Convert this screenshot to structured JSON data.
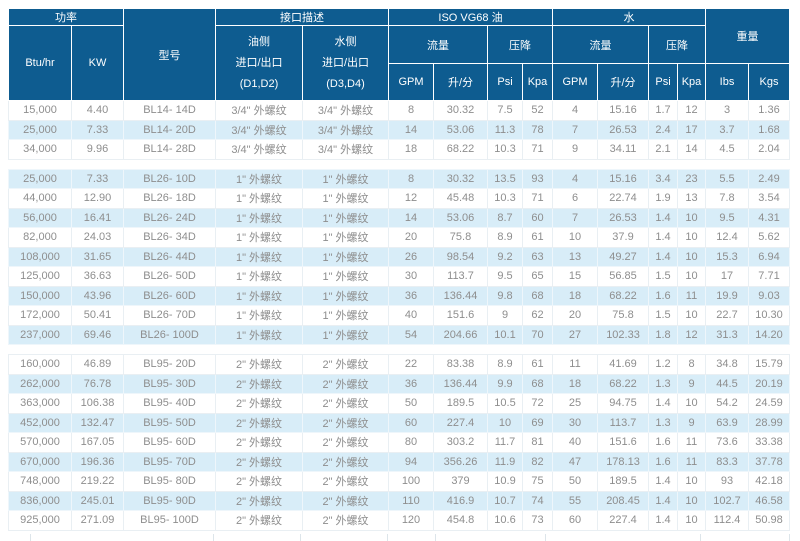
{
  "table": {
    "header": {
      "power": {
        "label": "功率",
        "units": [
          "Btu/hr",
          "KW"
        ]
      },
      "model": {
        "label": "型号"
      },
      "interface": {
        "label": "接口描述",
        "oil_side": [
          "油侧",
          "进口/出口",
          "(D1,D2)"
        ],
        "water_side": [
          "水侧",
          "进口/出口",
          "(D3,D4)"
        ]
      },
      "oil": {
        "label": "ISO VG68 油",
        "flow": "流量",
        "drop": "压降",
        "units": [
          "GPM",
          "升/分",
          "Psi",
          "Kpa"
        ]
      },
      "water": {
        "label": "水",
        "flow": "流量",
        "drop": "压降",
        "units": [
          "GPM",
          "升/分",
          "Psi",
          "Kpa"
        ]
      },
      "weight": {
        "label": "重量",
        "units": [
          "Ibs",
          "Kgs"
        ]
      }
    },
    "column_keys": [
      "btu-hr",
      "kw",
      "model",
      "oil-port",
      "water-port",
      "oil-gpm",
      "oil-lpm",
      "oil-psi",
      "oil-kpa",
      "water-gpm",
      "water-lpm",
      "water-psi",
      "water-kpa",
      "lbs",
      "kgs"
    ],
    "groups": [
      {
        "name": "BL14",
        "rows": [
          [
            "15,000",
            "4.40",
            "BL14- 14D",
            "3/4\" 外螺纹",
            "3/4\" 外螺纹",
            "8",
            "30.32",
            "7.5",
            "52",
            "4",
            "15.16",
            "1.7",
            "12",
            "3",
            "1.36"
          ],
          [
            "25,000",
            "7.33",
            "BL14- 20D",
            "3/4\" 外螺纹",
            "3/4\" 外螺纹",
            "14",
            "53.06",
            "11.3",
            "78",
            "7",
            "26.53",
            "2.4",
            "17",
            "3.7",
            "1.68"
          ],
          [
            "34,000",
            "9.96",
            "BL14- 28D",
            "3/4\" 外螺纹",
            "3/4\" 外螺纹",
            "18",
            "68.22",
            "10.3",
            "71",
            "9",
            "34.11",
            "2.1",
            "14",
            "4.5",
            "2.04"
          ]
        ]
      },
      {
        "name": "BL26",
        "rows": [
          [
            "25,000",
            "7.33",
            "BL26- 10D",
            "1\" 外螺纹",
            "1\" 外螺纹",
            "8",
            "30.32",
            "13.5",
            "93",
            "4",
            "15.16",
            "3.4",
            "23",
            "5.5",
            "2.49"
          ],
          [
            "44,000",
            "12.90",
            "BL26- 18D",
            "1\" 外螺纹",
            "1\" 外螺纹",
            "12",
            "45.48",
            "10.3",
            "71",
            "6",
            "22.74",
            "1.9",
            "13",
            "7.8",
            "3.54"
          ],
          [
            "56,000",
            "16.41",
            "BL26- 24D",
            "1\" 外螺纹",
            "1\" 外螺纹",
            "14",
            "53.06",
            "8.7",
            "60",
            "7",
            "26.53",
            "1.4",
            "10",
            "9.5",
            "4.31"
          ],
          [
            "82,000",
            "24.03",
            "BL26- 34D",
            "1\" 外螺纹",
            "1\" 外螺纹",
            "20",
            "75.8",
            "8.9",
            "61",
            "10",
            "37.9",
            "1.4",
            "10",
            "12.4",
            "5.62"
          ],
          [
            "108,000",
            "31.65",
            "BL26- 44D",
            "1\" 外螺纹",
            "1\" 外螺纹",
            "26",
            "98.54",
            "9.2",
            "63",
            "13",
            "49.27",
            "1.4",
            "10",
            "15.3",
            "6.94"
          ],
          [
            "125,000",
            "36.63",
            "BL26- 50D",
            "1\" 外螺纹",
            "1\" 外螺纹",
            "30",
            "113.7",
            "9.5",
            "65",
            "15",
            "56.85",
            "1.5",
            "10",
            "17",
            "7.71"
          ],
          [
            "150,000",
            "43.96",
            "BL26- 60D",
            "1\" 外螺纹",
            "1\" 外螺纹",
            "36",
            "136.44",
            "9.8",
            "68",
            "18",
            "68.22",
            "1.6",
            "11",
            "19.9",
            "9.03"
          ],
          [
            "172,000",
            "50.41",
            "BL26- 70D",
            "1\" 外螺纹",
            "1\" 外螺纹",
            "40",
            "151.6",
            "9",
            "62",
            "20",
            "75.8",
            "1.5",
            "10",
            "22.7",
            "10.30"
          ],
          [
            "237,000",
            "69.46",
            "BL26- 100D",
            "1\" 外螺纹",
            "1\" 外螺纹",
            "54",
            "204.66",
            "10.1",
            "70",
            "27",
            "102.33",
            "1.8",
            "12",
            "31.3",
            "14.20"
          ]
        ]
      },
      {
        "name": "BL95",
        "rows": [
          [
            "160,000",
            "46.89",
            "BL95- 20D",
            "2\" 外螺纹",
            "2\" 外螺纹",
            "22",
            "83.38",
            "8.9",
            "61",
            "11",
            "41.69",
            "1.2",
            "8",
            "34.8",
            "15.79"
          ],
          [
            "262,000",
            "76.78",
            "BL95- 30D",
            "2\" 外螺纹",
            "2\" 外螺纹",
            "36",
            "136.44",
            "9.9",
            "68",
            "18",
            "68.22",
            "1.3",
            "9",
            "44.5",
            "20.19"
          ],
          [
            "363,000",
            "106.38",
            "BL95- 40D",
            "2\" 外螺纹",
            "2\" 外螺纹",
            "50",
            "189.5",
            "10.5",
            "72",
            "25",
            "94.75",
            "1.4",
            "10",
            "54.2",
            "24.59"
          ],
          [
            "452,000",
            "132.47",
            "BL95- 50D",
            "2\" 外螺纹",
            "2\" 外螺纹",
            "60",
            "227.4",
            "10",
            "69",
            "30",
            "113.7",
            "1.3",
            "9",
            "63.9",
            "28.99"
          ],
          [
            "570,000",
            "167.05",
            "BL95- 60D",
            "2\" 外螺纹",
            "2\" 外螺纹",
            "80",
            "303.2",
            "11.7",
            "81",
            "40",
            "151.6",
            "1.6",
            "11",
            "73.6",
            "33.38"
          ],
          [
            "670,000",
            "196.36",
            "BL95- 70D",
            "2\" 外螺纹",
            "2\" 外螺纹",
            "94",
            "356.26",
            "11.9",
            "82",
            "47",
            "178.13",
            "1.6",
            "11",
            "83.3",
            "37.78"
          ],
          [
            "748,000",
            "219.22",
            "BL95- 80D",
            "2\" 外螺纹",
            "2\" 外螺纹",
            "100",
            "379",
            "10.9",
            "75",
            "50",
            "189.5",
            "1.4",
            "10",
            "93",
            "42.18"
          ],
          [
            "836,000",
            "245.01",
            "BL95- 90D",
            "2\" 外螺纹",
            "2\" 外螺纹",
            "110",
            "416.9",
            "10.7",
            "74",
            "55",
            "208.45",
            "1.4",
            "10",
            "102.7",
            "46.58"
          ],
          [
            "925,000",
            "271.09",
            "BL95- 100D",
            "2\" 外螺纹",
            "2\" 外螺纹",
            "120",
            "454.8",
            "10.6",
            "73",
            "60",
            "227.4",
            "1.4",
            "10",
            "112.4",
            "50.98"
          ]
        ]
      }
    ]
  },
  "colors": {
    "header_bg": "#0e5c90",
    "header_text": "#ffffff",
    "row_alt_bg": "#d8edf8",
    "data_text": "#8e8e8e",
    "grid_line": "#e9eff3",
    "bottom_border": "#bcc9d1"
  }
}
